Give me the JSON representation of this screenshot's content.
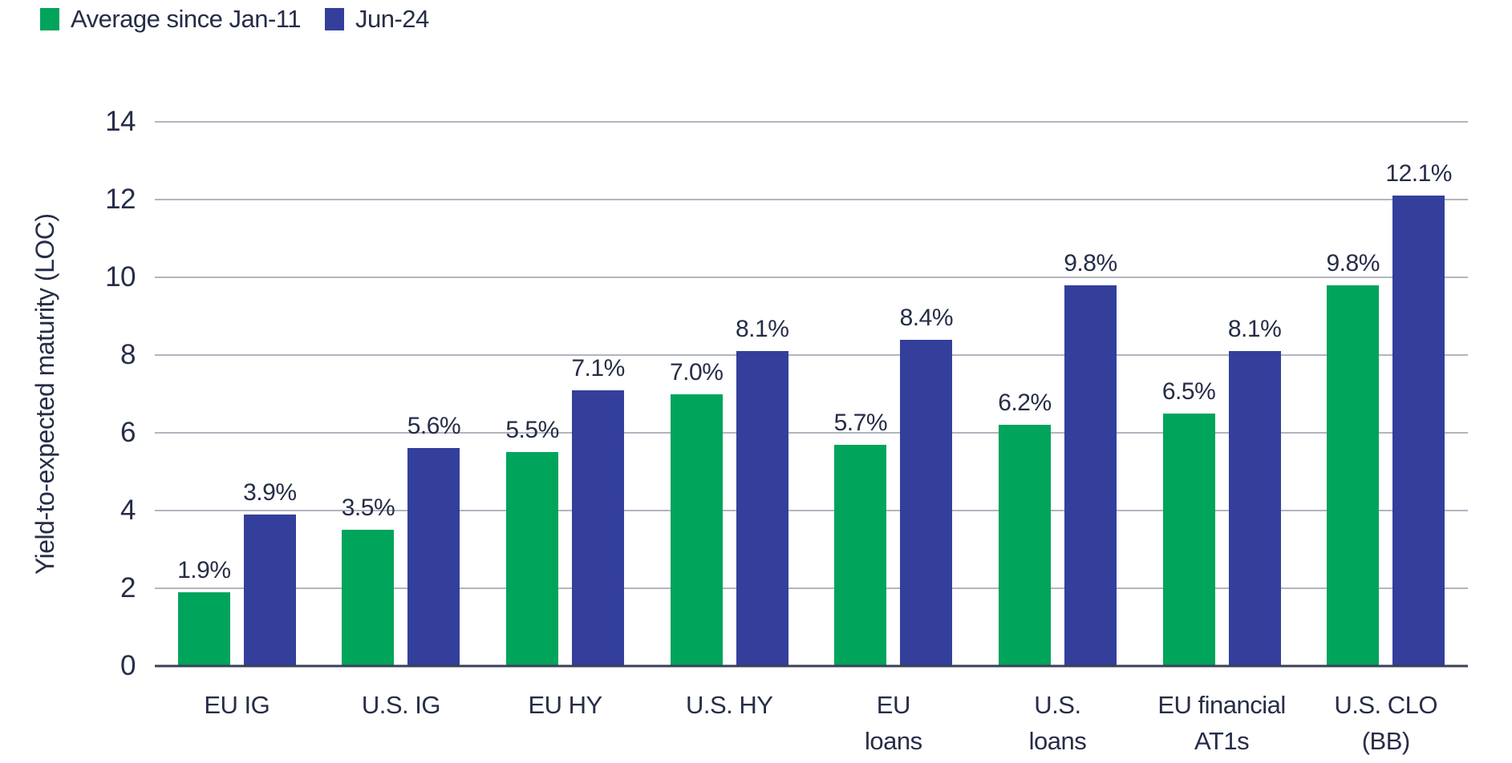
{
  "chart_data": {
    "type": "bar",
    "title": "",
    "xlabel": "",
    "ylabel": "Yield-to-expected maturity (LOC)",
    "ylim": [
      0,
      14
    ],
    "y_ticks": [
      0,
      2,
      4,
      6,
      8,
      10,
      12,
      14
    ],
    "grid": "horizontal",
    "legend_position": "top-left",
    "categories": [
      "EU IG",
      "U.S. IG",
      "EU HY",
      "U.S. HY",
      "EU loans",
      "U.S. loans",
      "EU financial AT1s",
      "U.S. CLO (BB)"
    ],
    "categories_lines": [
      [
        "EU IG"
      ],
      [
        "U.S. IG"
      ],
      [
        "EU HY"
      ],
      [
        "U.S. HY"
      ],
      [
        "EU",
        "loans"
      ],
      [
        "U.S.",
        "loans"
      ],
      [
        "EU financial",
        "AT1s"
      ],
      [
        "U.S. CLO",
        "(BB)"
      ]
    ],
    "series": [
      {
        "name": "Average since Jan-11",
        "color": "#00A45B",
        "values": [
          1.9,
          3.5,
          5.5,
          7.0,
          5.7,
          6.2,
          6.5,
          9.8
        ],
        "labels": [
          "1.9%",
          "3.5%",
          "5.5%",
          "7.0%",
          "5.7%",
          "6.2%",
          "6.5%",
          "9.8%"
        ]
      },
      {
        "name": "Jun-24",
        "color": "#333F9B",
        "values": [
          3.9,
          5.6,
          7.1,
          8.1,
          8.4,
          9.8,
          8.1,
          12.1
        ],
        "labels": [
          "3.9%",
          "5.6%",
          "7.1%",
          "8.1%",
          "8.4%",
          "9.8%",
          "8.1%",
          "12.1%"
        ]
      }
    ]
  },
  "colors": {
    "green": "#00A45B",
    "blue": "#333F9B",
    "text": "#262D47",
    "gridline": "#B4B4C0",
    "axis": "#3B4156"
  }
}
